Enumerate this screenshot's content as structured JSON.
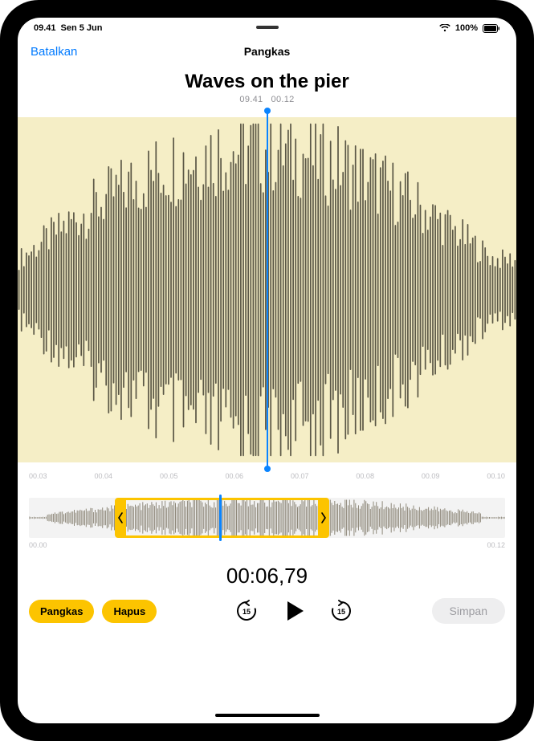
{
  "status": {
    "time": "09.41",
    "date": "Sen 5 Jun",
    "battery_pct": "100%"
  },
  "nav": {
    "cancel": "Batalkan",
    "title": "Pangkas"
  },
  "recording": {
    "title": "Waves on the pier",
    "meta_time": "09.41",
    "meta_duration": "00.12"
  },
  "waveform_main": {
    "background_color": "#f5eec6",
    "bar_color": "#5b5746",
    "playhead_color": "#0a84ff",
    "bar_count": 200,
    "center_ratio": 0.5,
    "seed_start": 0.18,
    "seed_mid": 0.85,
    "noise": 0.35
  },
  "ruler": {
    "ticks": [
      "00.03",
      "00.04",
      "00.05",
      "00.06",
      "00.07",
      "00.08",
      "00.09",
      "00.10"
    ]
  },
  "overview": {
    "bar_color": "#8e887a",
    "bar_count": 320,
    "trim_left_ratio": 0.18,
    "trim_right_ratio": 0.63,
    "playhead_ratio": 0.4,
    "handle_color": "#fcc400",
    "start_label": "00.00",
    "end_label": "00.12"
  },
  "playback": {
    "current_time": "00:06,79"
  },
  "controls": {
    "trim": "Pangkas",
    "delete": "Hapus",
    "save": "Simpan",
    "skip_amount": "15"
  },
  "colors": {
    "accent_yellow": "#fcc400",
    "link_blue": "#007aff",
    "save_disabled_bg": "#eeeeef",
    "save_disabled_fg": "#9c9ca1"
  }
}
